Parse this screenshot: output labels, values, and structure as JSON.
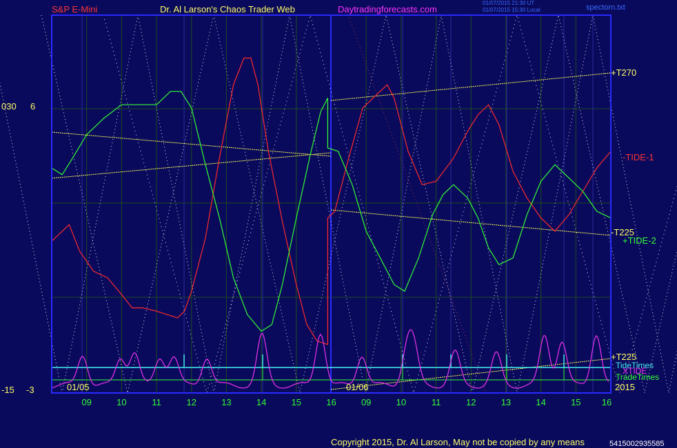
{
  "header": {
    "symbol": "S&P E-Mini",
    "title": "Dr. Al Larson's Chaos Trader Web",
    "site": "Daytradingforecasts.com",
    "timestamp1": "01/07/2015 21:30 UT",
    "timestamp2": "01/07/2015 15:30 Local",
    "file": "spectorn.txt"
  },
  "footer": {
    "copyright": "Copyright 2015, Dr. Al Larson, May not be copied by any means",
    "code": "5415002935585"
  },
  "left_labels": {
    "upper_a": "030",
    "upper_b": "6",
    "lower_a": "-15",
    "lower_b": "-3"
  },
  "date_labels": {
    "day1": "01/05",
    "day2": "01/06",
    "year": "2015"
  },
  "right_labels": {
    "t270": "+T270",
    "tide1": "-TIDE-1",
    "t225_neg": "-T225",
    "tide2": "+TIDE-2",
    "t225_pos": "+T225",
    "tidetimes": "TideTimes",
    "xtide": "XTIDE",
    "tradetimes": "TradeTimes"
  },
  "colors": {
    "background": "#0a0a5c",
    "frame": "#2a2aff",
    "grid": "#1e4b1e",
    "red": "#ff2a2a",
    "green": "#33ff33",
    "yellow": "#ffff55",
    "white": "#e0e0ff",
    "magenta": "#ee33ee",
    "cyan": "#44eeee",
    "title_red": "#ff3333",
    "title_yellow": "#ffff66",
    "title_magenta": "#ff33ff",
    "footer": "#ffff66"
  },
  "chart_data": {
    "type": "line",
    "title": "S&P E-Mini",
    "x_ticks": [
      "09",
      "10",
      "11",
      "12",
      "13",
      "14",
      "15",
      "16",
      "09",
      "10",
      "11",
      "12",
      "13",
      "14",
      "15",
      "16"
    ],
    "x_range": [
      0,
      16
    ],
    "series": [
      {
        "name": "-TIDE-1",
        "color": "#ff2a2a",
        "points": [
          [
            0,
            0.35
          ],
          [
            0.3,
            0.38
          ],
          [
            0.5,
            0.4
          ],
          [
            0.8,
            0.32
          ],
          [
            1.2,
            0.26
          ],
          [
            1.6,
            0.24
          ],
          [
            2.0,
            0.19
          ],
          [
            2.3,
            0.15
          ],
          [
            2.6,
            0.15
          ],
          [
            3.0,
            0.14
          ],
          [
            3.3,
            0.13
          ],
          [
            3.6,
            0.12
          ],
          [
            3.8,
            0.14
          ],
          [
            4.0,
            0.2
          ],
          [
            4.4,
            0.36
          ],
          [
            4.8,
            0.6
          ],
          [
            5.2,
            0.82
          ],
          [
            5.5,
            0.9
          ],
          [
            5.7,
            0.9
          ],
          [
            5.9,
            0.82
          ],
          [
            6.2,
            0.62
          ],
          [
            6.6,
            0.41
          ],
          [
            7.0,
            0.22
          ],
          [
            7.3,
            0.1
          ],
          [
            7.6,
            0.05
          ],
          [
            7.9,
            0.04
          ],
          [
            7.9,
            0.42
          ],
          [
            8.1,
            0.44
          ],
          [
            8.5,
            0.6
          ],
          [
            8.9,
            0.75
          ],
          [
            9.3,
            0.79
          ],
          [
            9.6,
            0.82
          ],
          [
            9.8,
            0.78
          ],
          [
            10.2,
            0.62
          ],
          [
            10.6,
            0.52
          ],
          [
            11.0,
            0.53
          ],
          [
            11.5,
            0.6
          ],
          [
            11.9,
            0.68
          ],
          [
            12.2,
            0.73
          ],
          [
            12.5,
            0.76
          ],
          [
            12.8,
            0.7
          ],
          [
            13.2,
            0.56
          ],
          [
            13.6,
            0.48
          ],
          [
            14.0,
            0.42
          ],
          [
            14.4,
            0.38
          ],
          [
            14.8,
            0.43
          ],
          [
            15.2,
            0.5
          ],
          [
            15.6,
            0.57
          ],
          [
            16.0,
            0.62
          ]
        ]
      },
      {
        "name": "+TIDE-2",
        "color": "#33ff33",
        "points": [
          [
            0,
            0.57
          ],
          [
            0.3,
            0.55
          ],
          [
            0.6,
            0.6
          ],
          [
            1.0,
            0.67
          ],
          [
            1.5,
            0.72
          ],
          [
            2.0,
            0.76
          ],
          [
            2.5,
            0.76
          ],
          [
            3.0,
            0.76
          ],
          [
            3.4,
            0.8
          ],
          [
            3.7,
            0.8
          ],
          [
            4.0,
            0.75
          ],
          [
            4.4,
            0.58
          ],
          [
            4.8,
            0.42
          ],
          [
            5.2,
            0.24
          ],
          [
            5.6,
            0.13
          ],
          [
            6.0,
            0.08
          ],
          [
            6.3,
            0.1
          ],
          [
            6.6,
            0.22
          ],
          [
            7.0,
            0.42
          ],
          [
            7.4,
            0.61
          ],
          [
            7.7,
            0.74
          ],
          [
            7.9,
            0.78
          ],
          [
            7.9,
            0.63
          ],
          [
            8.2,
            0.62
          ],
          [
            8.6,
            0.52
          ],
          [
            9.0,
            0.38
          ],
          [
            9.4,
            0.3
          ],
          [
            9.8,
            0.22
          ],
          [
            10.1,
            0.2
          ],
          [
            10.5,
            0.3
          ],
          [
            10.9,
            0.43
          ],
          [
            11.2,
            0.49
          ],
          [
            11.5,
            0.52
          ],
          [
            11.9,
            0.48
          ],
          [
            12.2,
            0.42
          ],
          [
            12.5,
            0.33
          ],
          [
            12.8,
            0.28
          ],
          [
            13.2,
            0.3
          ],
          [
            13.6,
            0.43
          ],
          [
            14.0,
            0.53
          ],
          [
            14.4,
            0.58
          ],
          [
            14.8,
            0.54
          ],
          [
            15.2,
            0.5
          ],
          [
            15.6,
            0.44
          ],
          [
            16.0,
            0.42
          ]
        ]
      },
      {
        "name": "XTIDE",
        "color": "#ee33ee"
      },
      {
        "name": "TideTimes",
        "color": "#44eeee"
      },
      {
        "name": "TradeTimes",
        "color": "#33ff33"
      },
      {
        "name": "+T270",
        "color": "#ffff55"
      },
      {
        "name": "-T225",
        "color": "#ffff55"
      },
      {
        "name": "+T225",
        "color": "#ffff55"
      }
    ]
  }
}
